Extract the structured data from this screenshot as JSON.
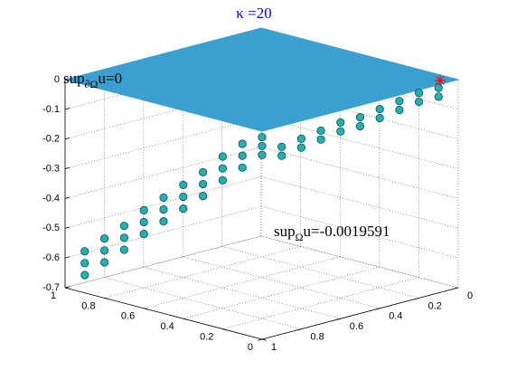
{
  "chart_data": {
    "type": "scatter3d",
    "title": "κ =20",
    "title_color": "#0000ff",
    "annotations": [
      {
        "text": "sup",
        "sub": "∂Ω",
        "rest": "u=0"
      },
      {
        "text": "sup",
        "sub": "Ω",
        "rest": "u=-0.0019591"
      }
    ],
    "plane_color": "#3aa0d2",
    "marker_color": "#20b2b2",
    "grid": true,
    "xlim": [
      0,
      1
    ],
    "xticks": [
      0,
      0.2,
      0.4,
      0.6,
      0.8,
      1
    ],
    "ylim": [
      0,
      1
    ],
    "yticks": [
      0,
      0.2,
      0.4,
      0.6,
      0.8,
      1
    ],
    "zlim": [
      -0.7,
      0
    ],
    "zticks": [
      0,
      -0.1,
      -0.2,
      -0.3,
      -0.4,
      -0.5,
      -0.6,
      -0.7
    ],
    "points": {
      "x": [
        0.9,
        0.9,
        0.9,
        0.8,
        0.8,
        0.8,
        0.7,
        0.7,
        0.7,
        0.6,
        0.6,
        0.6,
        0.5,
        0.5,
        0.5,
        0.4,
        0.4,
        0.4,
        0.3,
        0.3,
        0.3,
        0.2,
        0.2,
        0.2,
        0.1,
        0.1,
        0.1,
        0,
        0,
        0,
        0,
        0,
        0,
        0,
        0,
        0,
        0,
        0,
        0,
        0,
        0,
        0,
        0,
        0,
        0,
        0,
        0,
        0
      ],
      "y": [
        1,
        1,
        1,
        1,
        1,
        1,
        1,
        1,
        1,
        1,
        1,
        1,
        1,
        1,
        1,
        1,
        1,
        1,
        1,
        1,
        1,
        1,
        1,
        1,
        1,
        1,
        1,
        1,
        1,
        1,
        0.9,
        0.9,
        0.8,
        0.8,
        0.7,
        0.7,
        0.6,
        0.6,
        0.5,
        0.5,
        0.4,
        0.4,
        0.3,
        0.3,
        0.2,
        0.2,
        0.1,
        0.1
      ],
      "z": [
        -0.64,
        -0.6,
        -0.56,
        -0.58,
        -0.54,
        -0.5,
        -0.52,
        -0.48,
        -0.44,
        -0.45,
        -0.41,
        -0.37,
        -0.39,
        -0.35,
        -0.31,
        -0.33,
        -0.29,
        -0.25,
        -0.27,
        -0.23,
        -0.19,
        -0.2,
        -0.16,
        -0.12,
        -0.14,
        -0.1,
        -0.06,
        -0.08,
        -0.05,
        -0.02,
        -0.1,
        -0.07,
        -0.09,
        -0.06,
        -0.08,
        -0.05,
        -0.07,
        -0.04,
        -0.07,
        -0.04,
        -0.06,
        -0.03,
        -0.05,
        -0.02,
        -0.04,
        -0.01,
        -0.04,
        -0.01
      ]
    }
  }
}
